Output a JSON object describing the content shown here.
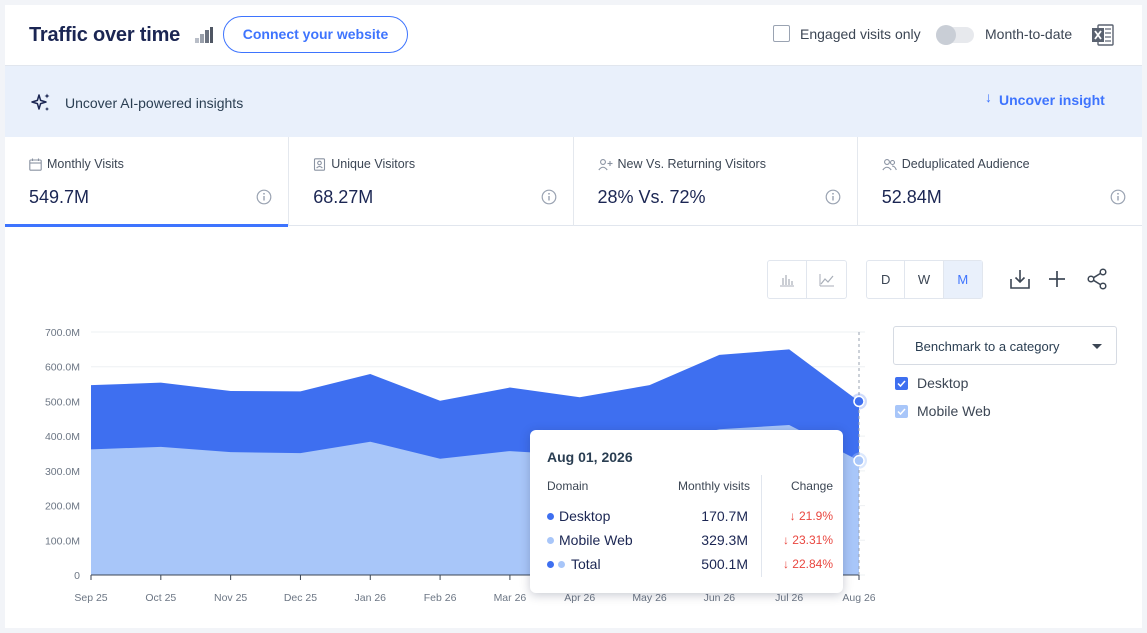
{
  "header": {
    "title": "Traffic over time",
    "connect_label": "Connect your website",
    "engaged_label": "Engaged visits only",
    "month_to_date_label": "Month-to-date"
  },
  "insights": {
    "text": "Uncover AI-powered insights",
    "button_label": "Uncover insight"
  },
  "metrics": [
    {
      "label": "Monthly Visits",
      "value": "549.7M",
      "icon": "calendar-icon",
      "active": true
    },
    {
      "label": "Unique Visitors",
      "value": "68.27M",
      "icon": "id-card-icon",
      "active": false
    },
    {
      "label": "New Vs. Returning Visitors",
      "value": "28% Vs. 72%",
      "icon": "user-plus-icon",
      "active": false
    },
    {
      "label": "Deduplicated Audience",
      "value": "52.84M",
      "icon": "users-icon",
      "active": false
    }
  ],
  "granularity": [
    {
      "label": "D",
      "selected": false
    },
    {
      "label": "W",
      "selected": false
    },
    {
      "label": "M",
      "selected": true
    }
  ],
  "benchmark": {
    "label": "Benchmark to a category"
  },
  "legend": [
    {
      "name": "Desktop",
      "color": "#3e6ff0",
      "checked": true
    },
    {
      "name": "Mobile Web",
      "color": "#a8c6f9",
      "checked": true
    }
  ],
  "tooltip": {
    "date": "Aug 01, 2026",
    "col_domain": "Domain",
    "col_visits": "Monthly visits",
    "col_change": "Change",
    "rows": [
      {
        "name": "Desktop",
        "value": "170.7M",
        "change": "21.9%"
      },
      {
        "name": "Mobile Web",
        "value": "329.3M",
        "change": "23.31%"
      },
      {
        "name": "Total",
        "value": "500.1M",
        "change": "22.84%"
      }
    ]
  },
  "colors": {
    "accent": "#3e74fe",
    "desktop_area": "#3e6ff0",
    "mobile_area": "#a8c6f9",
    "negative": "#e9463f"
  },
  "chart_data": {
    "type": "area",
    "stacked": true,
    "categories": [
      "Sep 25",
      "Oct 25",
      "Nov 25",
      "Dec 25",
      "Jan 26",
      "Feb 26",
      "Mar 26",
      "Apr 26",
      "May 26",
      "Jun 26",
      "Jul 26",
      "Aug 26"
    ],
    "series": [
      {
        "name": "Mobile Web",
        "values": [
          362,
          369,
          354,
          351,
          384,
          335,
          357,
          345,
          370,
          420,
          432,
          329.3
        ]
      },
      {
        "name": "Desktop",
        "values": [
          185,
          185,
          176,
          178,
          195,
          167,
          183,
          167,
          177,
          214,
          218,
          170.7
        ]
      }
    ],
    "y_ticks": [
      "0",
      "100.0M",
      "200.0M",
      "300.0M",
      "400.0M",
      "500.0M",
      "600.0M",
      "700.0M"
    ],
    "ylim": [
      0,
      700
    ],
    "grid": true,
    "legend_placement": "right"
  }
}
